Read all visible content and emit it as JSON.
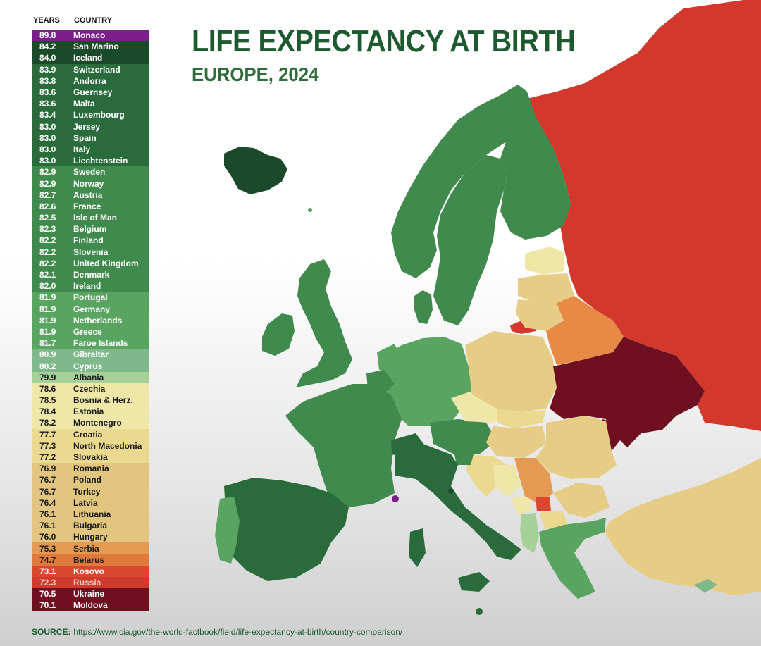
{
  "title": "LIFE EXPECTANCY AT BIRTH",
  "subtitle": "EUROPE, 2024",
  "legend": {
    "years_header": "YEARS",
    "country_header": "COUNTRY",
    "rows": [
      {
        "years": "89.8",
        "country": "Monaco",
        "bg": "#7a1f8c",
        "fg": "#ffffff"
      },
      {
        "years": "84.2",
        "country": "San Marino",
        "bg": "#1b4a2a",
        "fg": "#ffffff"
      },
      {
        "years": "84.0",
        "country": "Iceland",
        "bg": "#1b4a2a",
        "fg": "#ffffff"
      },
      {
        "years": "83.9",
        "country": "Switzerland",
        "bg": "#2a6b3c",
        "fg": "#ffffff"
      },
      {
        "years": "83.8",
        "country": "Andorra",
        "bg": "#2a6b3c",
        "fg": "#ffffff"
      },
      {
        "years": "83.6",
        "country": "Guernsey",
        "bg": "#2a6b3c",
        "fg": "#ffffff"
      },
      {
        "years": "83.6",
        "country": "Malta",
        "bg": "#2a6b3c",
        "fg": "#ffffff"
      },
      {
        "years": "83.4",
        "country": "Luxembourg",
        "bg": "#2a6b3c",
        "fg": "#ffffff"
      },
      {
        "years": "83.0",
        "country": "Jersey",
        "bg": "#2a6b3c",
        "fg": "#ffffff"
      },
      {
        "years": "83.0",
        "country": "Spain",
        "bg": "#2a6b3c",
        "fg": "#ffffff"
      },
      {
        "years": "83.0",
        "country": "Italy",
        "bg": "#2a6b3c",
        "fg": "#ffffff"
      },
      {
        "years": "83.0",
        "country": "Liechtenstein",
        "bg": "#2a6b3c",
        "fg": "#ffffff"
      },
      {
        "years": "82.9",
        "country": "Sweden",
        "bg": "#3f8a4c",
        "fg": "#ffffff"
      },
      {
        "years": "82.9",
        "country": "Norway",
        "bg": "#3f8a4c",
        "fg": "#ffffff"
      },
      {
        "years": "82.7",
        "country": "Austria",
        "bg": "#3f8a4c",
        "fg": "#ffffff"
      },
      {
        "years": "82.6",
        "country": "France",
        "bg": "#3f8a4c",
        "fg": "#ffffff"
      },
      {
        "years": "82.5",
        "country": "Isle of Man",
        "bg": "#3f8a4c",
        "fg": "#ffffff"
      },
      {
        "years": "82.3",
        "country": "Belgium",
        "bg": "#3f8a4c",
        "fg": "#ffffff"
      },
      {
        "years": "82.2",
        "country": "Finland",
        "bg": "#3f8a4c",
        "fg": "#ffffff"
      },
      {
        "years": "82.2",
        "country": "Slovenia",
        "bg": "#3f8a4c",
        "fg": "#ffffff"
      },
      {
        "years": "82.2",
        "country": "United Kingdom",
        "bg": "#3f8a4c",
        "fg": "#ffffff"
      },
      {
        "years": "82.1",
        "country": "Denmark",
        "bg": "#3f8a4c",
        "fg": "#ffffff"
      },
      {
        "years": "82.0",
        "country": "Ireland",
        "bg": "#3f8a4c",
        "fg": "#ffffff"
      },
      {
        "years": "81.9",
        "country": "Portugal",
        "bg": "#5aa462",
        "fg": "#ffffff"
      },
      {
        "years": "81.9",
        "country": "Germany",
        "bg": "#5aa462",
        "fg": "#ffffff"
      },
      {
        "years": "81.9",
        "country": "Netherlands",
        "bg": "#5aa462",
        "fg": "#ffffff"
      },
      {
        "years": "81.9",
        "country": "Greece",
        "bg": "#5aa462",
        "fg": "#ffffff"
      },
      {
        "years": "81.7",
        "country": "Faroe Islands",
        "bg": "#5aa462",
        "fg": "#ffffff"
      },
      {
        "years": "80.9",
        "country": "Gibraltar",
        "bg": "#7fb88a",
        "fg": "#ffffff"
      },
      {
        "years": "80.2",
        "country": "Cyprus",
        "bg": "#7fb88a",
        "fg": "#ffffff"
      },
      {
        "years": "79.9",
        "country": "Albania",
        "bg": "#a6d09a",
        "fg": "#1a1a1a"
      },
      {
        "years": "78.6",
        "country": "Czechia",
        "bg": "#efe7a8",
        "fg": "#1a1a1a"
      },
      {
        "years": "78.5",
        "country": "Bosnia & Herz.",
        "bg": "#efe7a8",
        "fg": "#1a1a1a"
      },
      {
        "years": "78.4",
        "country": "Estonia",
        "bg": "#efe7a8",
        "fg": "#1a1a1a"
      },
      {
        "years": "78.2",
        "country": "Montenegro",
        "bg": "#efe7a8",
        "fg": "#1a1a1a"
      },
      {
        "years": "77.7",
        "country": "Croatia",
        "bg": "#ead98f",
        "fg": "#1a1a1a"
      },
      {
        "years": "77.3",
        "country": "North Macedonia",
        "bg": "#ead98f",
        "fg": "#1a1a1a"
      },
      {
        "years": "77.2",
        "country": "Slovakia",
        "bg": "#ead98f",
        "fg": "#1a1a1a"
      },
      {
        "years": "76.9",
        "country": "Romania",
        "bg": "#e2c57e",
        "fg": "#1a1a1a"
      },
      {
        "years": "76.7",
        "country": "Poland",
        "bg": "#e2c57e",
        "fg": "#1a1a1a"
      },
      {
        "years": "76.7",
        "country": "Turkey",
        "bg": "#e2c57e",
        "fg": "#1a1a1a"
      },
      {
        "years": "76.4",
        "country": "Latvia",
        "bg": "#e2c57e",
        "fg": "#1a1a1a"
      },
      {
        "years": "76.1",
        "country": "Lithuania",
        "bg": "#e2c57e",
        "fg": "#1a1a1a"
      },
      {
        "years": "76.1",
        "country": "Bulgaria",
        "bg": "#e2c57e",
        "fg": "#1a1a1a"
      },
      {
        "years": "76.0",
        "country": "Hungary",
        "bg": "#e2c57e",
        "fg": "#1a1a1a"
      },
      {
        "years": "75.3",
        "country": "Serbia",
        "bg": "#e49a52",
        "fg": "#1a1a1a"
      },
      {
        "years": "74.7",
        "country": "Belarus",
        "bg": "#e07a3c",
        "fg": "#1a1a1a"
      },
      {
        "years": "73.1",
        "country": "Kosovo",
        "bg": "#d9472e",
        "fg": "#ffffff"
      },
      {
        "years": "72.3",
        "country": "Russia",
        "bg": "#cf3a2c",
        "fg": "#f3c9c0"
      },
      {
        "years": "70.5",
        "country": "Ukraine",
        "bg": "#6e1020",
        "fg": "#ffffff"
      },
      {
        "years": "70.1",
        "country": "Moldova",
        "bg": "#6e1020",
        "fg": "#ffffff"
      }
    ]
  },
  "source": {
    "label": "SOURCE:",
    "url": "https://www.cia.gov/the-world-factbook/field/life-expectancy-at-birth/country-comparison/"
  },
  "colors": {
    "title": "#1e5a2f",
    "russia": "#d2382c",
    "ukraine_moldova": "#6e1020",
    "belarus": "#e68a45",
    "dark_green": "#2d6e3c",
    "mid_green": "#3f8a4c",
    "light_green": "#5aa462",
    "tan": "#e6cc85",
    "pale": "#f0e6a5"
  }
}
